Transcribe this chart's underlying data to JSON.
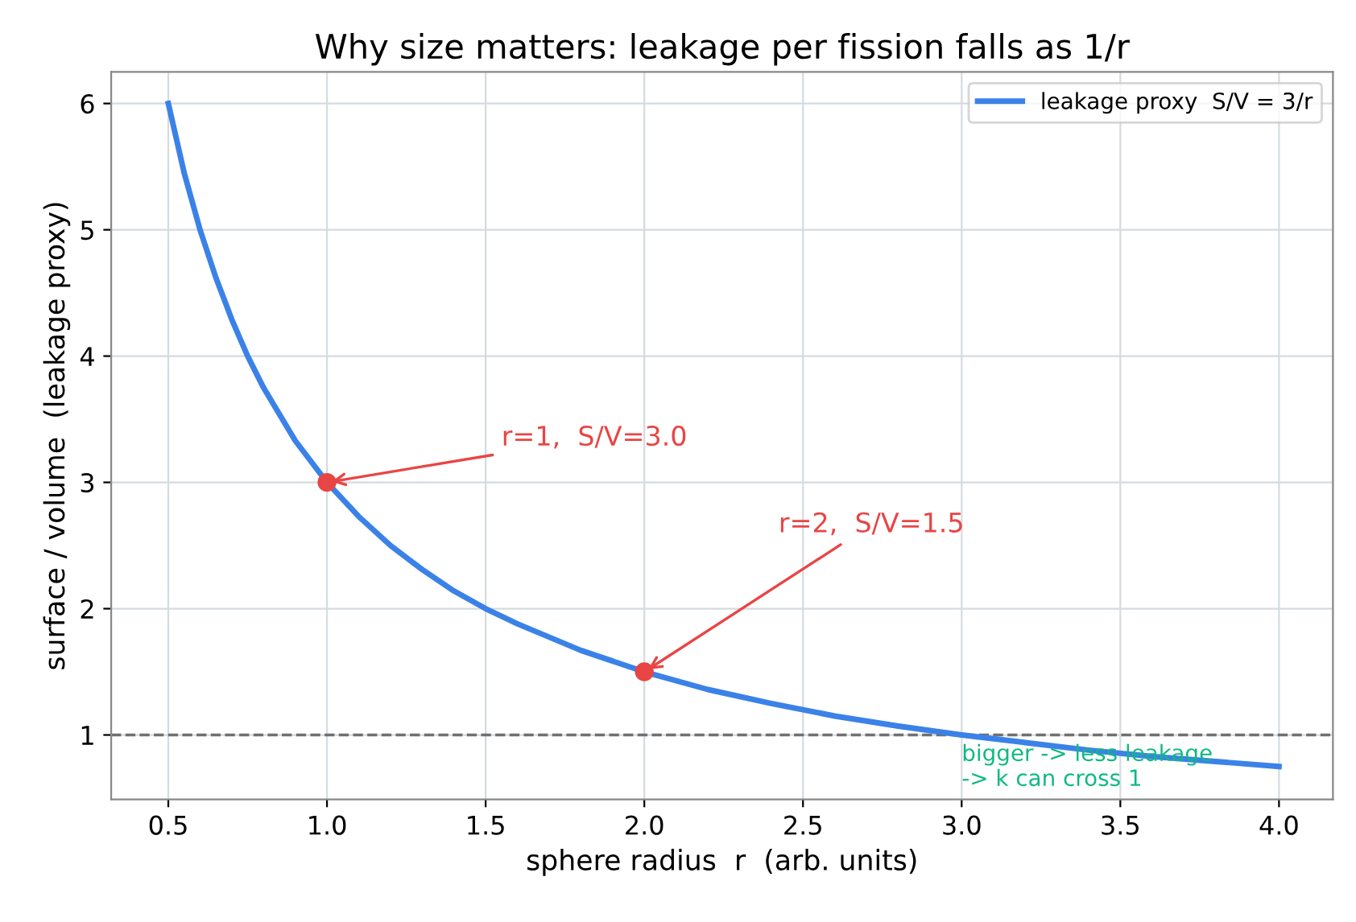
{
  "chart_data": {
    "type": "line",
    "title": "Why size matters: leakage per fission falls as 1/r",
    "xlabel": "sphere radius  r  (arb. units)",
    "ylabel": "surface / volume  (leakage proxy)",
    "series": [
      {
        "name": "leakage proxy  S/V = 3/r",
        "color": "#3b82e8",
        "x": [
          0.5,
          0.55,
          0.6,
          0.65,
          0.7,
          0.75,
          0.8,
          0.9,
          1.0,
          1.1,
          1.2,
          1.3,
          1.4,
          1.5,
          1.6,
          1.8,
          2.0,
          2.2,
          2.4,
          2.6,
          2.8,
          3.0,
          3.2,
          3.4,
          3.6,
          3.8,
          4.0
        ],
        "values": [
          6.0,
          5.45,
          5.0,
          4.62,
          4.29,
          4.0,
          3.75,
          3.33,
          3.0,
          2.73,
          2.5,
          2.31,
          2.14,
          2.0,
          1.88,
          1.67,
          1.5,
          1.36,
          1.25,
          1.15,
          1.07,
          1.0,
          0.94,
          0.88,
          0.83,
          0.79,
          0.75
        ]
      },
      {
        "type": "scatter",
        "marker": "circle",
        "color": "#e84545",
        "x": [
          1.0,
          2.0
        ],
        "values": [
          3.0,
          1.5
        ]
      }
    ],
    "annotations": [
      {
        "text": "r=1,  S/V=3.0",
        "x": 1.0,
        "y": 3.0
      },
      {
        "text": "r=2,  S/V=1.5",
        "x": 2.0,
        "y": 1.5
      },
      {
        "text": "bigger -> less leakage\n-> k can cross 1",
        "x": 3.0,
        "y": 1.0
      }
    ],
    "ref_lines": [
      {
        "axis": "y",
        "value": 1,
        "color": "#707070",
        "line_style": "dashed"
      }
    ],
    "xlim": [
      0.32,
      4.17
    ],
    "ylim": [
      0.49,
      6.25
    ],
    "xticks": [
      0.5,
      {
        "value": 1,
        "label": "1.0"
      },
      1.5,
      {
        "value": 2,
        "label": "2.0"
      },
      2.5,
      {
        "value": 3,
        "label": "3.0"
      },
      3.5,
      {
        "value": 4,
        "label": "4.0"
      }
    ],
    "yticks": [
      1,
      2,
      3,
      4,
      5,
      6
    ],
    "grid": true,
    "legend": "top right",
    "line_style": "solid"
  }
}
